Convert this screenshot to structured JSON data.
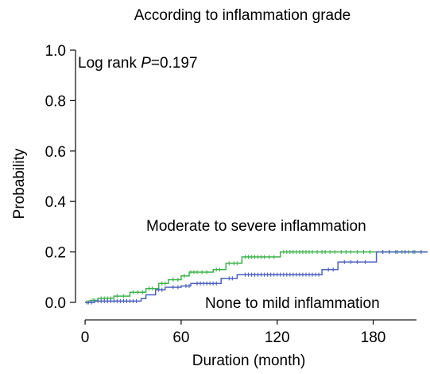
{
  "chart_data": {
    "type": "line",
    "title": "According to inflammation grade",
    "xlabel": "Duration (month)",
    "ylabel": "Probability",
    "xlim": [
      -6,
      214
    ],
    "ylim": [
      0,
      1.0
    ],
    "x_ticks": [
      "0",
      "60",
      "120",
      "180"
    ],
    "x_tick_values": [
      0,
      60,
      120,
      180
    ],
    "y_ticks": [
      "0.0",
      "0.2",
      "0.4",
      "0.6",
      "0.8",
      "1.0"
    ],
    "y_tick_values": [
      0,
      0.2,
      0.4,
      0.6,
      0.8,
      1.0
    ],
    "annotation_prefix": "Log rank ",
    "annotation_italic": "P",
    "annotation_suffix": "=0.197",
    "grid": false,
    "series": [
      {
        "name": "Moderate to severe inflammation",
        "color": "#3cb44b",
        "steps": [
          [
            0,
            0
          ],
          [
            3,
            0.008
          ],
          [
            8,
            0.016
          ],
          [
            18,
            0.025
          ],
          [
            28,
            0.04
          ],
          [
            38,
            0.055
          ],
          [
            46,
            0.075
          ],
          [
            52,
            0.09
          ],
          [
            60,
            0.105
          ],
          [
            65,
            0.12
          ],
          [
            80,
            0.13
          ],
          [
            88,
            0.155
          ],
          [
            98,
            0.18
          ],
          [
            122,
            0.2
          ],
          [
            183,
            0.2
          ],
          [
            214,
            0.2
          ]
        ],
        "censor": [
          1,
          2,
          5,
          6,
          10,
          12,
          14,
          16,
          20,
          24,
          30,
          33,
          36,
          40,
          42,
          48,
          50,
          55,
          58,
          62,
          66,
          68,
          70,
          73,
          76,
          82,
          84,
          90,
          93,
          95,
          100,
          102,
          104,
          106,
          108,
          110,
          112,
          115,
          118,
          124,
          126,
          128,
          130,
          132,
          134,
          136,
          138,
          140,
          142,
          145,
          148,
          150,
          153,
          156,
          160,
          163,
          166,
          170,
          174,
          178,
          186,
          190,
          194,
          198,
          202,
          206,
          210
        ]
      },
      {
        "name": "None to mild inflammation",
        "color": "#4a5fbf",
        "steps": [
          [
            0,
            0
          ],
          [
            6,
            0.005
          ],
          [
            35,
            0.015
          ],
          [
            38,
            0.03
          ],
          [
            44,
            0.05
          ],
          [
            50,
            0.06
          ],
          [
            60,
            0.065
          ],
          [
            66,
            0.075
          ],
          [
            85,
            0.095
          ],
          [
            95,
            0.11
          ],
          [
            148,
            0.13
          ],
          [
            158,
            0.16
          ],
          [
            182,
            0.2
          ],
          [
            214,
            0.2
          ]
        ],
        "censor": [
          2,
          4,
          8,
          10,
          12,
          14,
          16,
          18,
          20,
          22,
          24,
          26,
          28,
          30,
          32,
          46,
          48,
          55,
          58,
          63,
          65,
          70,
          72,
          74,
          76,
          78,
          80,
          82,
          90,
          92,
          100,
          102,
          104,
          106,
          108,
          110,
          112,
          114,
          116,
          118,
          120,
          122,
          124,
          126,
          128,
          130,
          132,
          134,
          136,
          138,
          140,
          142,
          144,
          146,
          152,
          155,
          162,
          166,
          170,
          175,
          186,
          190,
          195,
          200,
          205,
          210
        ]
      }
    ],
    "labels": {
      "upper": "Moderate to severe inflammation",
      "lower": "None to mild inflammation"
    }
  }
}
